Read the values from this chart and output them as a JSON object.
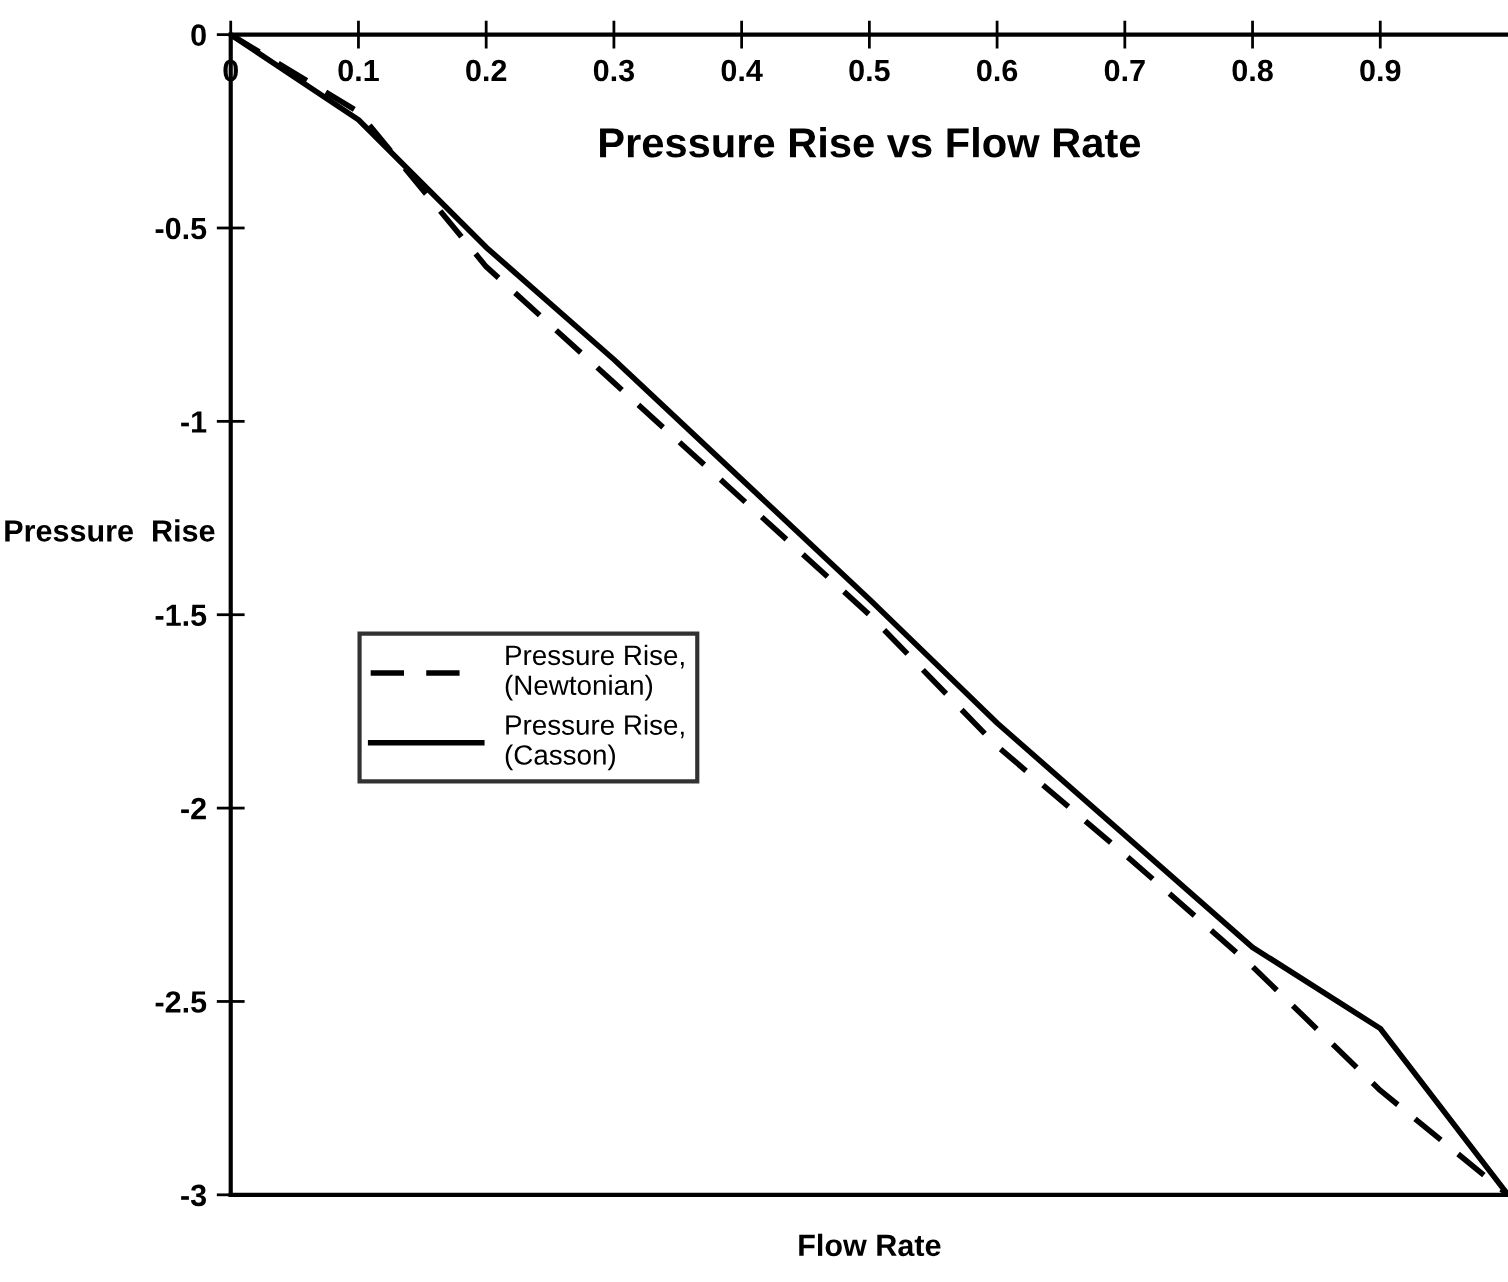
{
  "chart_data": {
    "type": "line",
    "title": "Pressure Rise vs Flow Rate",
    "xlabel": "Flow Rate",
    "ylabel": "Pressure  Rise",
    "x": [
      0,
      0.1,
      0.2,
      0.3,
      0.4,
      0.5,
      0.6,
      0.7,
      0.8,
      0.9,
      1.0
    ],
    "series": [
      {
        "name": "Pressure Rise, (Newtonian)",
        "color": "#000000",
        "line_style": "dashed",
        "values": [
          0,
          -0.2,
          -0.6,
          -0.9,
          -1.2,
          -1.5,
          -1.84,
          -2.12,
          -2.41,
          -2.73,
          -3.0
        ]
      },
      {
        "name": "Pressure Rise, (Casson)",
        "color": "#000000",
        "line_style": "solid",
        "values": [
          0,
          -0.22,
          -0.55,
          -0.84,
          -1.15,
          -1.46,
          -1.78,
          -2.07,
          -2.36,
          -2.57,
          -3.0
        ]
      }
    ],
    "xlim": [
      0,
      1
    ],
    "xticks": [
      0,
      0.1,
      0.2,
      0.3,
      0.4,
      0.5,
      0.6,
      0.7,
      0.8,
      0.9
    ],
    "ylim": [
      -3,
      0
    ],
    "yticks": [
      -3,
      -2.5,
      -2,
      -1.5,
      -1,
      -0.5,
      0
    ],
    "grid": false,
    "legend": "left",
    "marker": "none"
  }
}
